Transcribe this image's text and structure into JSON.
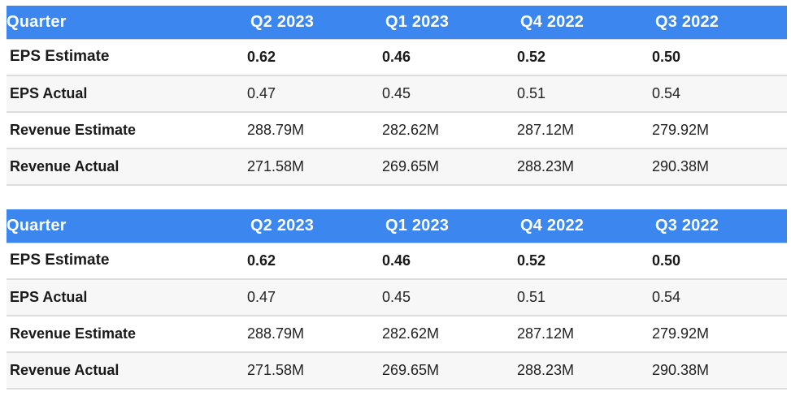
{
  "tables": [
    {
      "header": [
        "Quarter",
        "Q2 2023",
        "Q1 2023",
        "Q4 2022",
        "Q3 2022"
      ],
      "rows": [
        {
          "label": "EPS Estimate",
          "values": [
            "0.62",
            "0.46",
            "0.52",
            "0.50"
          ]
        },
        {
          "label": "EPS Actual",
          "values": [
            "0.47",
            "0.45",
            "0.51",
            "0.54"
          ]
        },
        {
          "label": "Revenue Estimate",
          "values": [
            "288.79M",
            "282.62M",
            "287.12M",
            "279.92M"
          ]
        },
        {
          "label": "Revenue Actual",
          "values": [
            "271.58M",
            "269.65M",
            "288.23M",
            "290.38M"
          ]
        }
      ]
    },
    {
      "header": [
        "Quarter",
        "Q2 2023",
        "Q1 2023",
        "Q4 2022",
        "Q3 2022"
      ],
      "rows": [
        {
          "label": "EPS Estimate",
          "values": [
            "0.62",
            "0.46",
            "0.52",
            "0.50"
          ]
        },
        {
          "label": "EPS Actual",
          "values": [
            "0.47",
            "0.45",
            "0.51",
            "0.54"
          ]
        },
        {
          "label": "Revenue Estimate",
          "values": [
            "288.79M",
            "282.62M",
            "287.12M",
            "279.92M"
          ]
        },
        {
          "label": "Revenue Actual",
          "values": [
            "271.58M",
            "269.65M",
            "288.23M",
            "290.38M"
          ]
        }
      ]
    }
  ],
  "colors": {
    "header_bg": "#3b86ef",
    "header_text": "#ffffff",
    "row_alt_bg": "#f7f7f7",
    "row_border": "#dcdcdc"
  }
}
